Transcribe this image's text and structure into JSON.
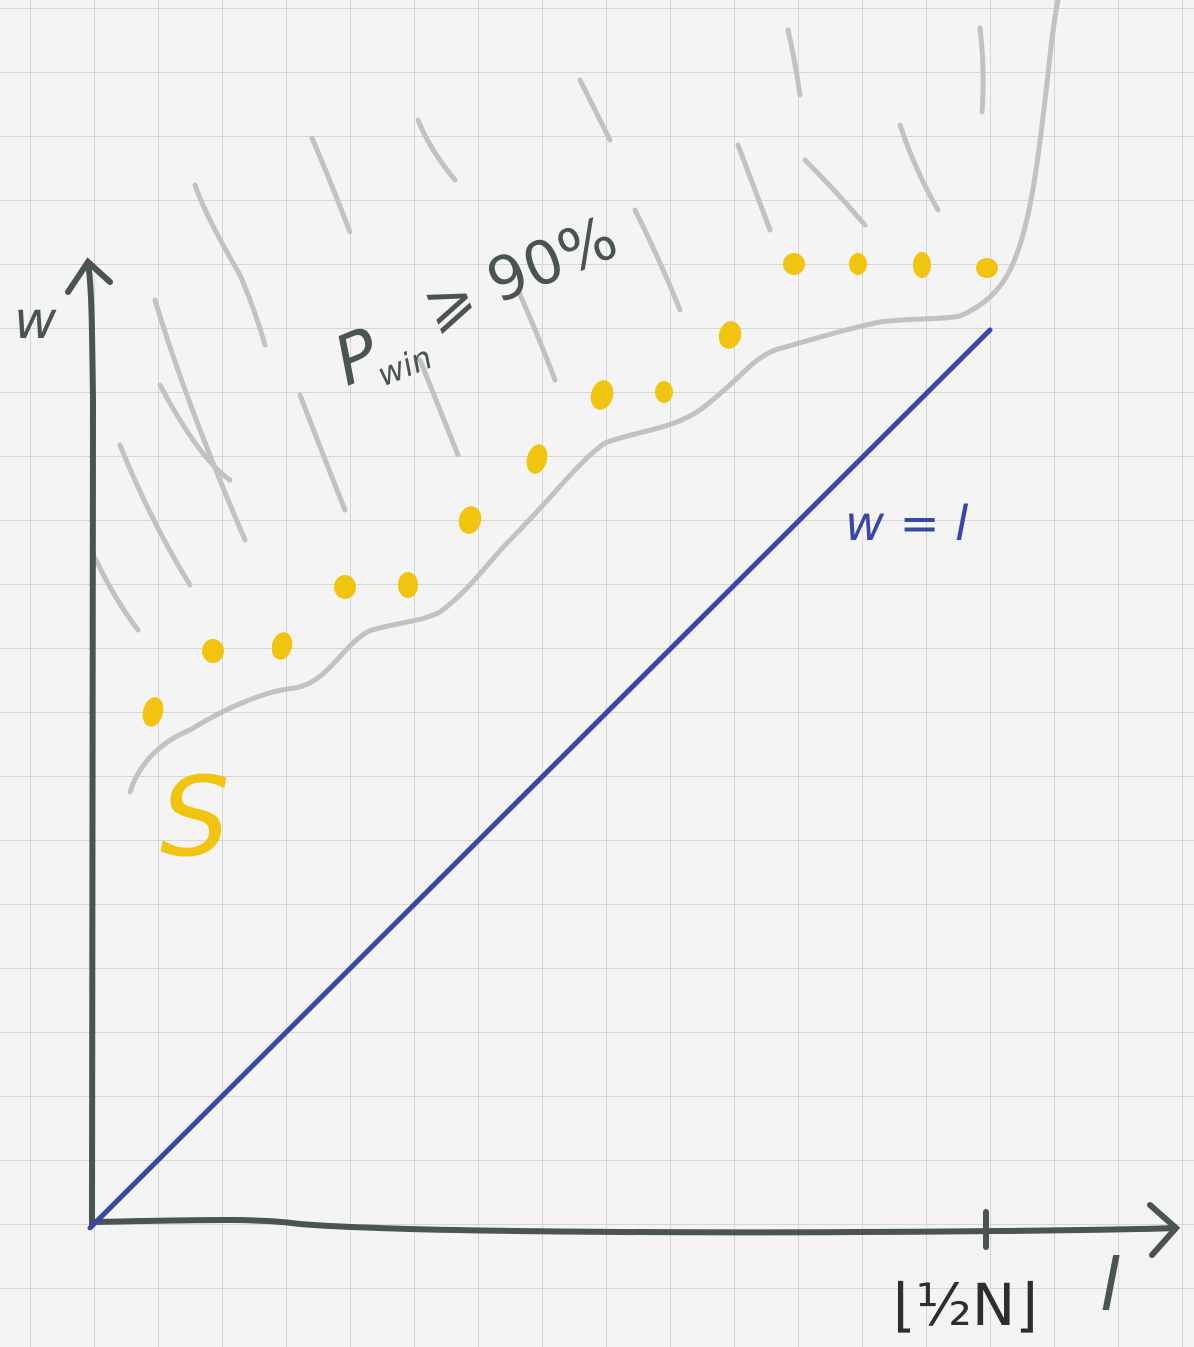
{
  "labels": {
    "y_axis": "w",
    "x_axis": "l",
    "x_tick": "⌊½N⌋",
    "region": "P",
    "region_sub": "win",
    "region_rest": "⩾ 90%",
    "diagonal": "w = l",
    "set_name": "S"
  },
  "colors": {
    "background": "#f4f4f4",
    "grid": "#d6d6d6",
    "axis": "#4a5452",
    "hatch": "#c4c2be",
    "diagonal": "#3a46a8",
    "points": "#f1c40f",
    "text": "#4a5452"
  }
}
